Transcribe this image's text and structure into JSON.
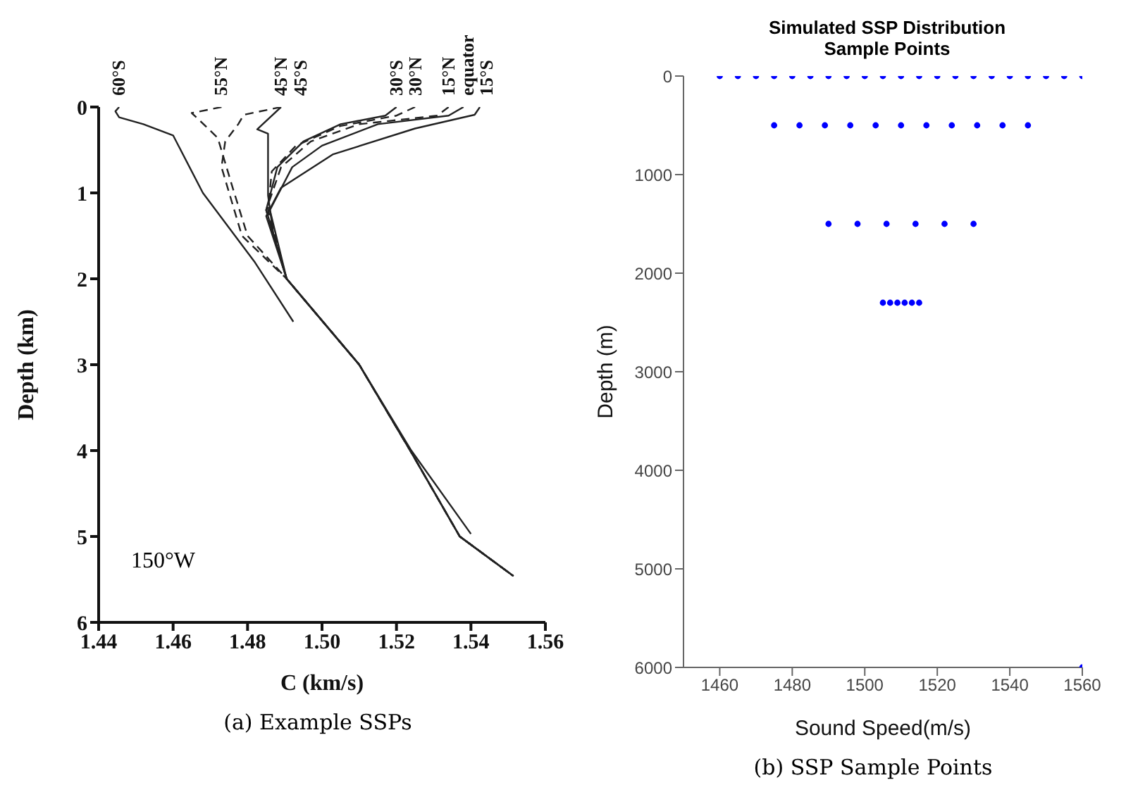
{
  "chart_data": [
    {
      "type": "line",
      "xlabel": "C (km/s)",
      "ylabel": "Depth (km)",
      "annotations": [
        "150°W",
        "(a) Example SSPs"
      ],
      "xlim": [
        1.44,
        1.56
      ],
      "xticks": [
        1.44,
        1.46,
        1.48,
        {
          "value": 1.5,
          "label": "1.50"
        },
        1.52,
        1.54,
        1.56
      ],
      "ylim": [
        6,
        0
      ],
      "yticks": [
        0,
        1,
        2,
        3,
        4,
        5,
        6
      ],
      "grid": false,
      "legend": false,
      "marker": "none",
      "series": [
        {
          "name": "60°S",
          "color": "#222222",
          "line_style": "solid",
          "x": [
            1.4455,
            1.4445,
            1.4455,
            1.452,
            1.46,
            1.468,
            1.482,
            1.4923
          ],
          "values": [
            0,
            0.05,
            0.12,
            0.2,
            0.33,
            1.0,
            1.81,
            2.5
          ]
        },
        {
          "name": "55°N",
          "color": "#222222",
          "line_style": "dashed",
          "x": [
            1.473,
            1.465,
            1.467,
            1.472,
            1.476,
            1.48,
            1.4905,
            1.51,
            1.5237,
            1.537,
            1.5514
          ],
          "values": [
            0,
            0.07,
            0.15,
            0.36,
            0.94,
            1.5,
            2.0,
            3.0,
            4.0,
            5.0,
            5.46
          ]
        },
        {
          "name": "45°N",
          "color": "#222222",
          "line_style": "dashed",
          "x": [
            1.489,
            1.479,
            1.4775,
            1.474,
            1.473,
            1.4785,
            1.4905,
            1.51,
            1.5237,
            1.537,
            1.5514
          ],
          "values": [
            0,
            0.09,
            0.2,
            0.4,
            0.7,
            1.5,
            2.0,
            3.0,
            4.0,
            5.0,
            5.46
          ]
        },
        {
          "name": "45°S",
          "color": "#222222",
          "line_style": "solid",
          "x": [
            1.489,
            1.4826,
            1.4855,
            1.4855,
            1.487,
            1.4905,
            1.51,
            1.524,
            1.54
          ],
          "values": [
            0,
            0.26,
            0.31,
            1.03,
            1.5,
            2.0,
            3.0,
            4.0,
            4.97
          ]
        },
        {
          "name": "30°S",
          "color": "#222222",
          "line_style": "solid",
          "x": [
            1.52,
            1.517,
            1.505,
            1.495,
            1.488,
            1.485,
            1.4905,
            1.51,
            1.5237,
            1.537,
            1.5514
          ],
          "values": [
            0,
            0.1,
            0.2,
            0.4,
            0.7,
            1.2,
            2.0,
            3.0,
            4.0,
            5.0,
            5.46
          ]
        },
        {
          "name": "30°N",
          "color": "#222222",
          "line_style": "dashed",
          "x": [
            1.525,
            1.52,
            1.505,
            1.493,
            1.4865,
            1.4855,
            1.4905,
            1.51,
            1.5237,
            1.537,
            1.5514
          ],
          "values": [
            0,
            0.1,
            0.22,
            0.45,
            0.75,
            1.2,
            2.0,
            3.0,
            4.0,
            5.0,
            5.46
          ]
        },
        {
          "name": "15°N",
          "color": "#222222",
          "line_style": "dashed",
          "x": [
            1.534,
            1.531,
            1.51,
            1.497,
            1.489,
            1.485,
            1.4905,
            1.51,
            1.5237,
            1.537,
            1.5514
          ],
          "values": [
            0,
            0.1,
            0.2,
            0.4,
            0.7,
            1.2,
            2.0,
            3.0,
            4.0,
            5.0,
            5.46
          ]
        },
        {
          "name": "equator",
          "color": "#222222",
          "line_style": "solid",
          "x": [
            1.538,
            1.534,
            1.515,
            1.5,
            1.492,
            1.486,
            1.4905,
            1.51,
            1.5237,
            1.537,
            1.5514
          ],
          "values": [
            0,
            0.1,
            0.2,
            0.45,
            0.7,
            1.2,
            2.0,
            3.0,
            4.0,
            5.0,
            5.46
          ]
        },
        {
          "name": "15°S",
          "color": "#222222",
          "line_style": "solid",
          "x": [
            1.5424,
            1.541,
            1.525,
            1.503,
            1.489,
            1.485,
            1.4905,
            1.51,
            1.5237,
            1.537,
            1.5514
          ],
          "values": [
            0,
            0.09,
            0.25,
            0.55,
            0.94,
            1.27,
            2.0,
            3.0,
            4.0,
            5.0,
            5.46
          ]
        }
      ]
    },
    {
      "type": "scatter",
      "title": "Simulated SSP Distribution\nSample Points",
      "xlabel": "Sound Speed(m/s)",
      "ylabel": "Depth (m)",
      "annotations": [
        "(b) SSP Sample Points"
      ],
      "xlim": [
        1450,
        1560
      ],
      "xticks": [
        1460,
        1480,
        1500,
        1520,
        1540,
        1560
      ],
      "ylim": [
        6000,
        0
      ],
      "yticks": [
        0,
        1000,
        2000,
        3000,
        4000,
        5000,
        6000
      ],
      "grid": false,
      "legend": false,
      "marker": "circle",
      "series": [
        {
          "color": "#0000ff",
          "x": [
            1460,
            1465,
            1470,
            1475,
            1480,
            1485,
            1490,
            1495,
            1500,
            1505,
            1510,
            1515,
            1520,
            1525,
            1530,
            1535,
            1540,
            1545,
            1550,
            1555,
            1560,
            1475,
            1482,
            1489,
            1496,
            1503,
            1510,
            1517,
            1524,
            1531,
            1538,
            1545,
            1490,
            1498,
            1506,
            1514,
            1522,
            1530,
            1505,
            1507,
            1509,
            1511,
            1513,
            1515,
            1560
          ],
          "values": [
            0,
            0,
            0,
            0,
            0,
            0,
            0,
            0,
            0,
            0,
            0,
            0,
            0,
            0,
            0,
            0,
            0,
            0,
            0,
            0,
            0,
            500,
            500,
            500,
            500,
            500,
            500,
            500,
            500,
            500,
            500,
            500,
            1500,
            1500,
            1500,
            1500,
            1500,
            1500,
            2300,
            2300,
            2300,
            2300,
            2300,
            2300,
            6000
          ]
        }
      ]
    }
  ]
}
